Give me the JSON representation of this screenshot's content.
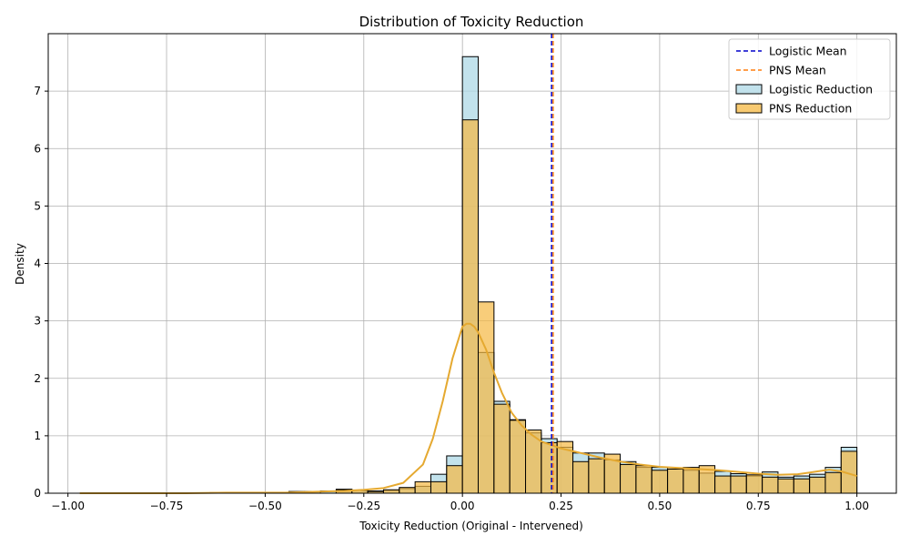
{
  "chart_data": {
    "type": "histogram",
    "title": "Distribution of Toxicity Reduction",
    "xlabel": "Toxicity Reduction (Original - Intervened)",
    "ylabel": "Density",
    "xlim": [
      -1.05,
      1.1
    ],
    "ylim": [
      0,
      8.0
    ],
    "xticks": [
      -1.0,
      -0.75,
      -0.5,
      -0.25,
      0.0,
      0.25,
      0.5,
      0.75,
      1.0
    ],
    "xtick_labels": [
      "−1.00",
      "−0.75",
      "−0.50",
      "−0.25",
      "0.00",
      "0.25",
      "0.50",
      "0.75",
      "1.00"
    ],
    "yticks": [
      0,
      1,
      2,
      3,
      4,
      5,
      6,
      7
    ],
    "ytick_labels": [
      "0",
      "1",
      "2",
      "3",
      "4",
      "5",
      "6",
      "7"
    ],
    "grid": true,
    "legend_position": "top-right",
    "legend": [
      {
        "label": "Logistic Mean",
        "kind": "dashed-line",
        "color": "#0000cc"
      },
      {
        "label": "PNS Mean",
        "kind": "dashed-line",
        "color": "#ff7f0e"
      },
      {
        "label": "Logistic Reduction",
        "kind": "patch",
        "color": "#add8e6"
      },
      {
        "label": "PNS Reduction",
        "kind": "patch",
        "color": "#f5b841"
      }
    ],
    "series": [
      {
        "name": "Logistic Reduction",
        "color": "#add8e6",
        "bins": [
          [
            -0.44,
            -0.4,
            0.03
          ],
          [
            -0.4,
            -0.36,
            0.03
          ],
          [
            -0.36,
            -0.32,
            0.04
          ],
          [
            -0.32,
            -0.28,
            0.07
          ],
          [
            -0.28,
            -0.24,
            0.05
          ],
          [
            -0.24,
            -0.2,
            0.04
          ],
          [
            -0.2,
            -0.16,
            0.05
          ],
          [
            -0.16,
            -0.12,
            0.08
          ],
          [
            -0.12,
            -0.08,
            0.12
          ],
          [
            -0.08,
            -0.04,
            0.33
          ],
          [
            -0.04,
            0.0,
            0.65
          ],
          [
            0.0,
            0.04,
            7.6
          ],
          [
            0.04,
            0.08,
            2.45
          ],
          [
            0.08,
            0.12,
            1.6
          ],
          [
            0.12,
            0.16,
            1.28
          ],
          [
            0.16,
            0.2,
            1.05
          ],
          [
            0.2,
            0.24,
            0.95
          ],
          [
            0.24,
            0.28,
            0.8
          ],
          [
            0.28,
            0.32,
            0.7
          ],
          [
            0.32,
            0.36,
            0.7
          ],
          [
            0.36,
            0.4,
            0.58
          ],
          [
            0.4,
            0.44,
            0.55
          ],
          [
            0.44,
            0.48,
            0.45
          ],
          [
            0.48,
            0.52,
            0.45
          ],
          [
            0.52,
            0.56,
            0.42
          ],
          [
            0.56,
            0.6,
            0.4
          ],
          [
            0.6,
            0.64,
            0.35
          ],
          [
            0.64,
            0.68,
            0.38
          ],
          [
            0.68,
            0.72,
            0.34
          ],
          [
            0.72,
            0.76,
            0.3
          ],
          [
            0.76,
            0.8,
            0.37
          ],
          [
            0.8,
            0.84,
            0.28
          ],
          [
            0.84,
            0.88,
            0.3
          ],
          [
            0.88,
            0.92,
            0.33
          ],
          [
            0.92,
            0.96,
            0.45
          ],
          [
            0.96,
            1.0,
            0.8
          ]
        ]
      },
      {
        "name": "PNS Reduction",
        "color": "#f5b841",
        "bins": [
          [
            -0.64,
            -0.6,
            0.01
          ],
          [
            -0.32,
            -0.28,
            0.06
          ],
          [
            -0.28,
            -0.24,
            0.05
          ],
          [
            -0.24,
            -0.2,
            0.03
          ],
          [
            -0.2,
            -0.16,
            0.06
          ],
          [
            -0.16,
            -0.12,
            0.1
          ],
          [
            -0.12,
            -0.08,
            0.2
          ],
          [
            -0.08,
            -0.04,
            0.2
          ],
          [
            -0.04,
            0.0,
            0.48
          ],
          [
            0.0,
            0.04,
            6.5
          ],
          [
            0.04,
            0.08,
            3.33
          ],
          [
            0.08,
            0.12,
            1.55
          ],
          [
            0.12,
            0.16,
            1.27
          ],
          [
            0.16,
            0.2,
            1.1
          ],
          [
            0.2,
            0.24,
            0.88
          ],
          [
            0.24,
            0.28,
            0.9
          ],
          [
            0.28,
            0.32,
            0.55
          ],
          [
            0.32,
            0.36,
            0.6
          ],
          [
            0.36,
            0.4,
            0.68
          ],
          [
            0.4,
            0.44,
            0.5
          ],
          [
            0.44,
            0.48,
            0.48
          ],
          [
            0.48,
            0.52,
            0.4
          ],
          [
            0.52,
            0.56,
            0.42
          ],
          [
            0.56,
            0.6,
            0.45
          ],
          [
            0.6,
            0.64,
            0.48
          ],
          [
            0.64,
            0.68,
            0.3
          ],
          [
            0.68,
            0.72,
            0.3
          ],
          [
            0.72,
            0.76,
            0.32
          ],
          [
            0.76,
            0.8,
            0.28
          ],
          [
            0.8,
            0.84,
            0.25
          ],
          [
            0.84,
            0.88,
            0.25
          ],
          [
            0.88,
            0.92,
            0.28
          ],
          [
            0.92,
            0.96,
            0.36
          ],
          [
            0.96,
            1.0,
            0.73
          ]
        ]
      }
    ],
    "kde": {
      "name": "PNS Reduction",
      "color": "#e5a930",
      "x": [
        -0.97,
        -0.9,
        -0.8,
        -0.7,
        -0.6,
        -0.5,
        -0.45,
        -0.4,
        -0.35,
        -0.3,
        -0.25,
        -0.2,
        -0.15,
        -0.1,
        -0.075,
        -0.05,
        -0.025,
        0.0,
        0.01,
        0.02,
        0.03,
        0.04,
        0.06,
        0.08,
        0.1,
        0.125,
        0.15,
        0.175,
        0.2,
        0.25,
        0.3,
        0.35,
        0.4,
        0.45,
        0.5,
        0.55,
        0.6,
        0.65,
        0.7,
        0.75,
        0.8,
        0.85,
        0.9,
        0.93,
        0.96,
        1.0
      ],
      "y": [
        0.0,
        0.0,
        0.0,
        0.0,
        0.01,
        0.01,
        0.01,
        0.02,
        0.03,
        0.04,
        0.06,
        0.09,
        0.18,
        0.5,
        0.95,
        1.6,
        2.35,
        2.9,
        2.95,
        2.95,
        2.9,
        2.8,
        2.5,
        2.1,
        1.75,
        1.4,
        1.18,
        1.02,
        0.9,
        0.78,
        0.7,
        0.62,
        0.55,
        0.5,
        0.46,
        0.44,
        0.42,
        0.4,
        0.37,
        0.34,
        0.32,
        0.33,
        0.38,
        0.41,
        0.38,
        0.3
      ]
    },
    "mean_lines": [
      {
        "name": "Logistic Mean",
        "x": 0.226,
        "color": "#0000cc"
      },
      {
        "name": "PNS Mean",
        "x": 0.23,
        "color": "#ff7f0e"
      }
    ]
  }
}
